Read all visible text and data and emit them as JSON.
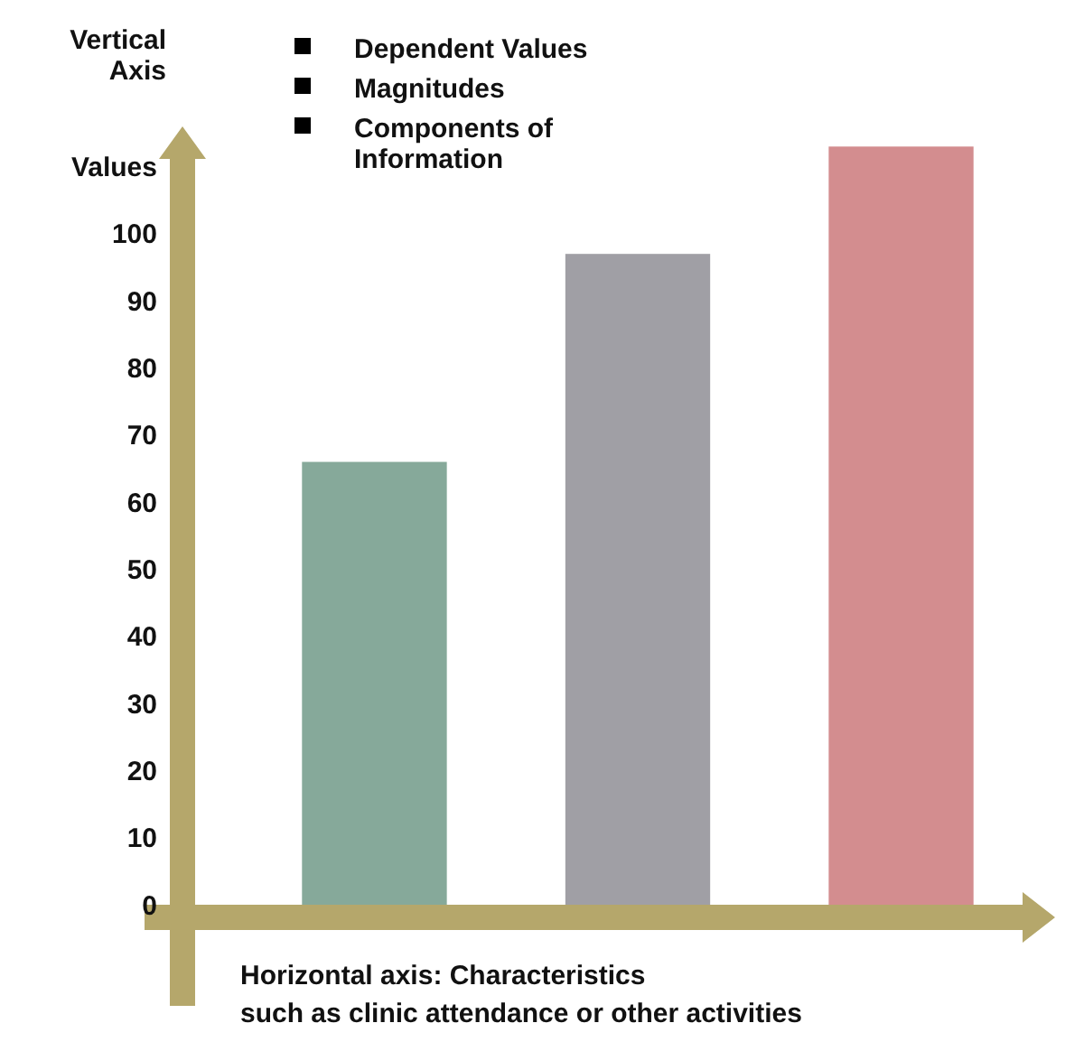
{
  "chart_data": {
    "type": "bar",
    "ylabel": "Vertical\nAxis",
    "xlabel": "Horizontal axis: Characteristics\nsuch as clinic attendance or other activities",
    "annotations": [
      "Dependent Values",
      "Magnitudes",
      "Components of\nInformation"
    ],
    "categories": [
      null,
      null,
      null
    ],
    "values": [
      66,
      97,
      113
    ],
    "colors": [
      "#86a99a",
      "#a09fa5",
      "#d38d8f"
    ],
    "ylim": [
      0,
      116
    ],
    "yticks": [
      0,
      10,
      20,
      30,
      40,
      50,
      60,
      70,
      80,
      90,
      100,
      {
        "value": 110,
        "label": "Values"
      }
    ],
    "grid": false
  }
}
